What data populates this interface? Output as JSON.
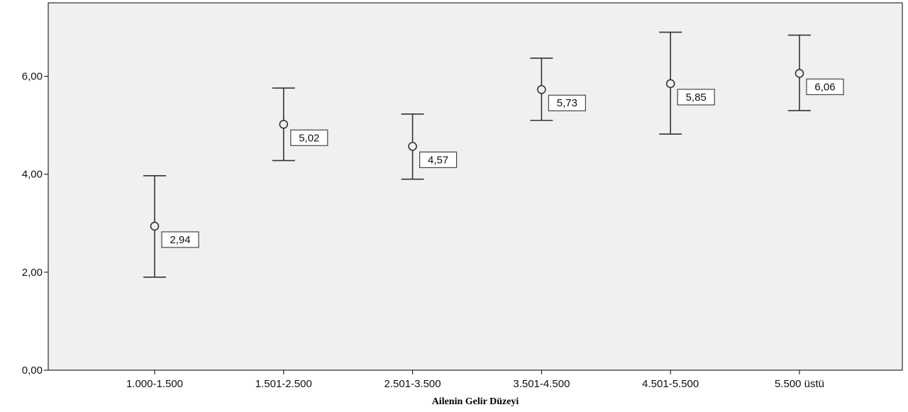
{
  "chart_data": {
    "type": "errorbar",
    "title": "",
    "xlabel": "Ailenin Gelir Düzeyi",
    "ylabel": "",
    "ylim": [
      0,
      7.5
    ],
    "yticks": [
      0,
      2,
      4,
      6
    ],
    "ytick_labels": [
      "0,00",
      "2,00",
      "4,00",
      "6,00"
    ],
    "categories": [
      "1.000-1.500",
      "1.501-2.500",
      "2.501-3.500",
      "3.501-4.500",
      "4.501-5.500",
      "5.500 üstü"
    ],
    "series": [
      {
        "values": [
          2.94,
          5.02,
          4.57,
          5.73,
          5.85,
          6.06
        ],
        "value_labels": [
          "2,94",
          "5,02",
          "4,57",
          "5,73",
          "5,85",
          "6,06"
        ],
        "lower": [
          1.9,
          4.28,
          3.9,
          5.1,
          4.82,
          5.3
        ],
        "upper": [
          3.97,
          5.76,
          5.23,
          6.37,
          6.9,
          6.84
        ]
      }
    ],
    "grid": false,
    "colors": {
      "plot_background": "#f0f0f0",
      "marks": "#333333",
      "axis": "#000000"
    }
  }
}
